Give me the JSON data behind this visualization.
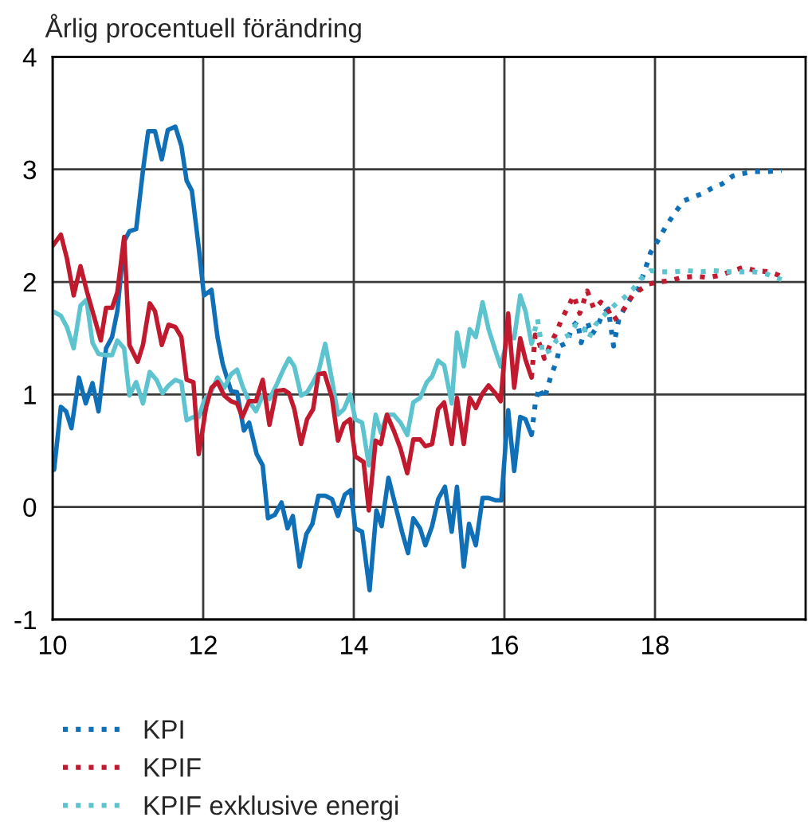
{
  "chart_data": {
    "type": "line",
    "ylabel": "Årlig procentuell förändring",
    "xlim": [
      10,
      20
    ],
    "xticks": [
      10,
      12,
      14,
      16,
      18
    ],
    "ylim": [
      -1,
      4
    ],
    "yticks": [
      -1,
      0,
      1,
      2,
      3,
      4
    ],
    "grid": true,
    "legend": "bottom",
    "series": [
      {
        "color": "#0f6fb7",
        "line_style": "solid",
        "x": [
          10.02,
          10.11,
          10.18,
          10.25,
          10.35,
          10.44,
          10.53,
          10.61,
          10.71,
          10.79,
          10.86,
          10.95,
          11.02,
          11.11,
          11.2,
          11.27,
          11.36,
          11.45,
          11.53,
          11.63,
          11.71,
          11.78,
          11.85,
          11.94,
          12.01,
          12.11,
          12.19,
          12.26,
          12.37,
          12.45,
          12.54,
          12.61,
          12.71,
          12.79,
          12.86,
          12.95,
          13.04,
          13.12,
          13.19,
          13.28,
          13.37,
          13.45,
          13.53,
          13.62,
          13.71,
          13.79,
          13.88,
          13.96,
          14.02,
          14.11,
          14.21,
          14.3,
          14.37,
          14.46,
          14.55,
          14.64,
          14.72,
          14.79,
          14.88,
          14.95,
          15.04,
          15.12,
          15.21,
          15.3,
          15.37,
          15.46,
          15.53,
          15.62,
          15.71,
          15.79,
          15.88,
          15.96,
          16.05,
          16.13,
          16.21,
          16.28,
          16.36
        ],
        "values": [
          0.33,
          0.89,
          0.85,
          0.7,
          1.15,
          0.92,
          1.1,
          0.85,
          1.41,
          1.51,
          1.74,
          2.36,
          2.45,
          2.47,
          2.99,
          3.34,
          3.34,
          3.09,
          3.35,
          3.38,
          3.21,
          2.9,
          2.81,
          2.31,
          1.88,
          1.93,
          1.51,
          1.27,
          1.03,
          1.02,
          0.68,
          0.75,
          0.47,
          0.37,
          -0.1,
          -0.07,
          0.04,
          -0.19,
          -0.08,
          -0.53,
          -0.24,
          -0.15,
          0.1,
          0.1,
          0.07,
          -0.08,
          0.11,
          0.15,
          -0.19,
          -0.22,
          -0.74,
          -0.03,
          -0.17,
          0.26,
          0.02,
          -0.22,
          -0.41,
          -0.1,
          -0.19,
          -0.34,
          -0.17,
          0.07,
          0.18,
          -0.22,
          0.18,
          -0.53,
          -0.15,
          -0.34,
          0.08,
          0.08,
          0.06,
          0.06,
          0.86,
          0.32,
          0.8,
          0.78,
          0.64
        ]
      },
      {
        "color": "#5cc3cf",
        "line_style": "solid",
        "x": [
          10.0,
          10.11,
          10.19,
          10.28,
          10.37,
          10.45,
          10.53,
          10.61,
          10.71,
          10.79,
          10.86,
          10.95,
          11.02,
          11.11,
          11.2,
          11.29,
          11.38,
          11.46,
          11.54,
          11.63,
          11.71,
          11.78,
          11.87,
          11.94,
          12.01,
          12.11,
          12.19,
          12.28,
          12.37,
          12.45,
          12.53,
          12.61,
          12.7,
          12.79,
          12.88,
          12.97,
          13.07,
          13.14,
          13.21,
          13.3,
          13.38,
          13.46,
          13.53,
          13.62,
          13.71,
          13.79,
          13.87,
          13.95,
          14.02,
          14.11,
          14.2,
          14.29,
          14.36,
          14.44,
          14.53,
          14.62,
          14.71,
          14.79,
          14.88,
          14.97,
          15.04,
          15.12,
          15.2,
          15.3,
          15.37,
          15.46,
          15.54,
          15.62,
          15.71,
          15.79,
          15.88,
          15.95,
          16.05,
          16.13,
          16.21,
          16.28,
          16.36
        ],
        "values": [
          1.74,
          1.7,
          1.6,
          1.41,
          1.79,
          1.84,
          1.46,
          1.36,
          1.35,
          1.35,
          1.48,
          1.41,
          0.99,
          1.11,
          0.92,
          1.2,
          1.13,
          1.01,
          1.08,
          1.13,
          1.11,
          0.77,
          0.8,
          0.8,
          0.94,
          1.03,
          1.15,
          1.06,
          1.18,
          1.22,
          1.06,
          0.94,
          0.85,
          0.99,
          0.96,
          1.08,
          1.23,
          1.32,
          1.25,
          0.99,
          1.02,
          1.11,
          1.2,
          1.45,
          1.13,
          0.82,
          0.87,
          1.0,
          0.78,
          0.75,
          0.37,
          0.82,
          0.66,
          0.82,
          0.82,
          0.75,
          0.64,
          0.93,
          0.97,
          1.11,
          1.16,
          1.3,
          1.26,
          0.92,
          1.55,
          1.25,
          1.58,
          1.51,
          1.82,
          1.58,
          1.39,
          1.25,
          1.52,
          1.5,
          1.88,
          1.74,
          1.45
        ]
      },
      {
        "color": "#c1192d",
        "line_style": "solid",
        "x": [
          10.0,
          10.11,
          10.19,
          10.28,
          10.37,
          10.45,
          10.53,
          10.64,
          10.71,
          10.79,
          10.86,
          10.95,
          11.02,
          11.13,
          11.2,
          11.29,
          11.36,
          11.45,
          11.54,
          11.63,
          11.71,
          11.78,
          11.87,
          11.94,
          12.04,
          12.11,
          12.19,
          12.28,
          12.37,
          12.45,
          12.52,
          12.61,
          12.7,
          12.79,
          12.88,
          12.97,
          13.07,
          13.14,
          13.21,
          13.3,
          13.38,
          13.46,
          13.53,
          13.61,
          13.71,
          13.79,
          13.87,
          13.95,
          14.02,
          14.13,
          14.2,
          14.29,
          14.36,
          14.44,
          14.53,
          14.62,
          14.71,
          14.79,
          14.88,
          14.95,
          15.04,
          15.12,
          15.2,
          15.3,
          15.37,
          15.46,
          15.54,
          15.62,
          15.71,
          15.79,
          15.88,
          15.95,
          16.05,
          16.13,
          16.21,
          16.28,
          16.36
        ],
        "values": [
          2.32,
          2.42,
          2.21,
          1.88,
          2.14,
          1.93,
          1.74,
          1.48,
          1.77,
          1.77,
          1.91,
          2.4,
          1.44,
          1.29,
          1.44,
          1.81,
          1.74,
          1.44,
          1.62,
          1.6,
          1.51,
          1.13,
          1.11,
          0.47,
          0.89,
          1.06,
          1.11,
          0.99,
          0.94,
          0.92,
          0.8,
          0.94,
          0.94,
          1.13,
          0.73,
          1.03,
          1.04,
          1.01,
          0.87,
          0.56,
          0.78,
          0.87,
          1.18,
          1.19,
          0.97,
          0.59,
          0.74,
          0.78,
          0.45,
          0.4,
          -0.03,
          0.59,
          0.56,
          0.82,
          0.68,
          0.52,
          0.3,
          0.6,
          0.6,
          0.54,
          0.56,
          0.87,
          0.93,
          0.56,
          0.97,
          0.56,
          0.97,
          0.88,
          1.01,
          1.08,
          1.01,
          0.94,
          1.72,
          1.06,
          1.5,
          1.31,
          1.15
        ]
      },
      {
        "name": "KPI",
        "color": "#0f6fb7",
        "line_style": "dotted",
        "x": [
          16.36,
          16.41,
          16.46,
          16.53,
          16.62,
          16.69,
          16.74,
          16.83,
          16.9,
          16.97,
          17.02,
          17.1,
          17.16,
          17.23,
          17.31,
          17.38,
          17.45,
          17.52,
          17.59,
          17.68,
          17.77,
          17.86,
          17.94,
          18.05,
          18.15,
          18.26,
          18.38,
          18.49,
          18.61,
          18.75,
          18.89,
          19.03,
          19.13,
          19.31,
          19.48,
          19.68
        ],
        "values": [
          0.64,
          0.92,
          1.06,
          0.96,
          1.17,
          1.29,
          1.43,
          1.46,
          1.6,
          1.65,
          1.46,
          1.65,
          1.53,
          1.6,
          1.72,
          1.76,
          1.43,
          1.67,
          1.76,
          1.86,
          1.93,
          2.09,
          2.26,
          2.38,
          2.5,
          2.61,
          2.72,
          2.75,
          2.78,
          2.83,
          2.87,
          2.94,
          2.96,
          2.98,
          2.98,
          2.99
        ]
      },
      {
        "name": "KPIF",
        "color": "#c1192d",
        "line_style": "dotted",
        "x": [
          16.36,
          16.41,
          16.46,
          16.53,
          16.62,
          16.69,
          16.76,
          16.84,
          16.92,
          17.0,
          17.1,
          17.19,
          17.28,
          17.37,
          17.44,
          17.51,
          17.59,
          17.7,
          17.8,
          17.91,
          18.05,
          18.19,
          18.36,
          18.54,
          18.71,
          18.87,
          18.99,
          19.17,
          19.34,
          19.52,
          19.68
        ],
        "values": [
          1.15,
          1.53,
          1.46,
          1.32,
          1.46,
          1.55,
          1.67,
          1.77,
          1.88,
          1.72,
          1.92,
          1.76,
          1.82,
          1.76,
          1.66,
          1.69,
          1.76,
          1.88,
          1.93,
          1.98,
          2.0,
          2.01,
          2.04,
          2.05,
          2.04,
          2.06,
          2.09,
          2.13,
          2.1,
          2.09,
          2.05
        ]
      },
      {
        "name": "KPIF exklusive energi",
        "color": "#5cc3cf",
        "line_style": "dotted",
        "x": [
          16.36,
          16.44,
          16.51,
          16.6,
          16.69,
          16.77,
          16.86,
          16.95,
          17.03,
          17.12,
          17.21,
          17.3,
          17.38,
          17.49,
          17.59,
          17.7,
          17.8,
          17.94,
          18.08,
          18.26,
          18.43,
          18.61,
          18.78,
          18.96,
          19.13,
          19.31,
          19.48,
          19.68
        ],
        "values": [
          1.45,
          1.67,
          1.36,
          1.39,
          1.48,
          1.5,
          1.53,
          1.62,
          1.62,
          1.5,
          1.62,
          1.69,
          1.74,
          1.81,
          1.86,
          1.93,
          2.02,
          2.1,
          2.09,
          2.09,
          2.1,
          2.09,
          2.1,
          2.09,
          2.09,
          2.09,
          2.07,
          2.02
        ]
      }
    ]
  }
}
